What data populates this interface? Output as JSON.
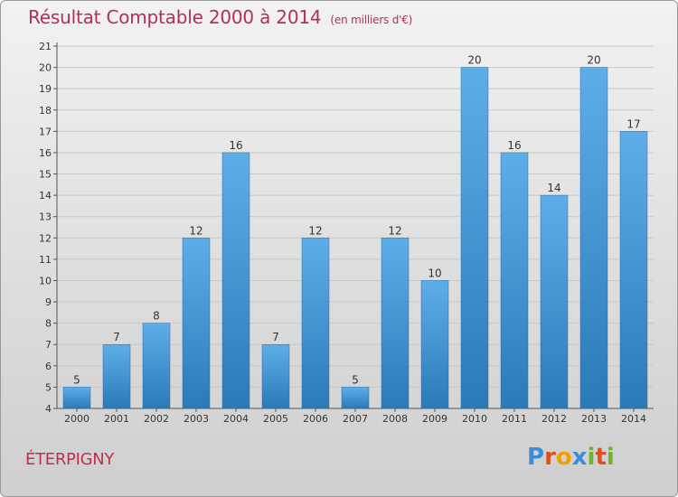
{
  "header": {
    "title": "Résultat Comptable 2000 à 2014",
    "unit": "(en milliers d'€)"
  },
  "footer": {
    "commune": "ÉTERPIGNY",
    "brand": "Proxiti"
  },
  "colors": {
    "title": "#b0305a",
    "bar_top": "#5daee8",
    "bar_bottom": "#2a7ab8",
    "brand_letters": [
      "#3a8ed8",
      "#e0501e",
      "#f0a000",
      "#3a8ed8",
      "#6cb52c",
      "#e0501e",
      "#6cb52c"
    ]
  },
  "chart_data": {
    "type": "bar",
    "title": "Résultat Comptable 2000 à 2014",
    "ylabel": "en milliers d'€",
    "xlabel": "",
    "categories": [
      "2000",
      "2001",
      "2002",
      "2003",
      "2004",
      "2005",
      "2006",
      "2007",
      "2008",
      "2009",
      "2010",
      "2011",
      "2012",
      "2013",
      "2014"
    ],
    "values": [
      5,
      7,
      8,
      12,
      16,
      7,
      12,
      5,
      12,
      10,
      20,
      16,
      14,
      20,
      17
    ],
    "ylim": [
      4,
      21
    ],
    "yticks": [
      4,
      5,
      6,
      7,
      8,
      9,
      10,
      11,
      12,
      13,
      14,
      15,
      16,
      17,
      18,
      19,
      20,
      21
    ],
    "grid": true
  }
}
